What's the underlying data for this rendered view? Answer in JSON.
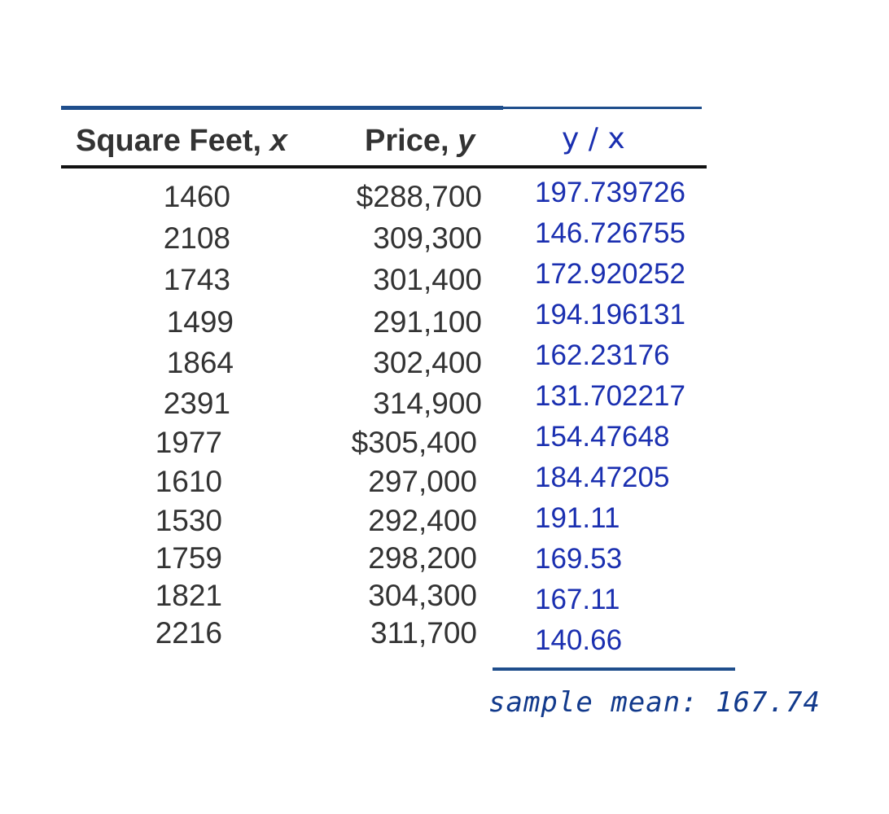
{
  "table": {
    "headers": {
      "x_label": "Square Feet, ",
      "x_var": "x",
      "y_label": "Price, ",
      "y_var": "y",
      "ratio": "y / x"
    },
    "rows": [
      {
        "x": "1460",
        "y": "$288,700",
        "ratio": "197.739726"
      },
      {
        "x": "2108",
        "y": "309,300",
        "ratio": "146.726755"
      },
      {
        "x": "1743",
        "y": "301,400",
        "ratio": "172.920252"
      },
      {
        "x": "1499",
        "y": "291,100",
        "ratio": "194.196131"
      },
      {
        "x": "1864",
        "y": "302,400",
        "ratio": "162.23176"
      },
      {
        "x": "2391",
        "y": "314,900",
        "ratio": "131.702217"
      },
      {
        "x": "1977",
        "y": "$305,400",
        "ratio": "154.47648"
      },
      {
        "x": "1610",
        "y": "297,000",
        "ratio": "184.47205"
      },
      {
        "x": "1530",
        "y": "292,400",
        "ratio": "191.11"
      },
      {
        "x": "1759",
        "y": "298,200",
        "ratio": "169.53"
      },
      {
        "x": "1821",
        "y": "304,300",
        "ratio": "167.11"
      },
      {
        "x": "2216",
        "y": "311,700",
        "ratio": "140.66"
      }
    ]
  },
  "summary": {
    "sample_mean": "sample mean: 167.74"
  },
  "colors": {
    "rule_blue": "#1f4e8c",
    "ratio_text": "#1a2fb0",
    "handwriting": "#123a8c",
    "body_text": "#333333"
  }
}
